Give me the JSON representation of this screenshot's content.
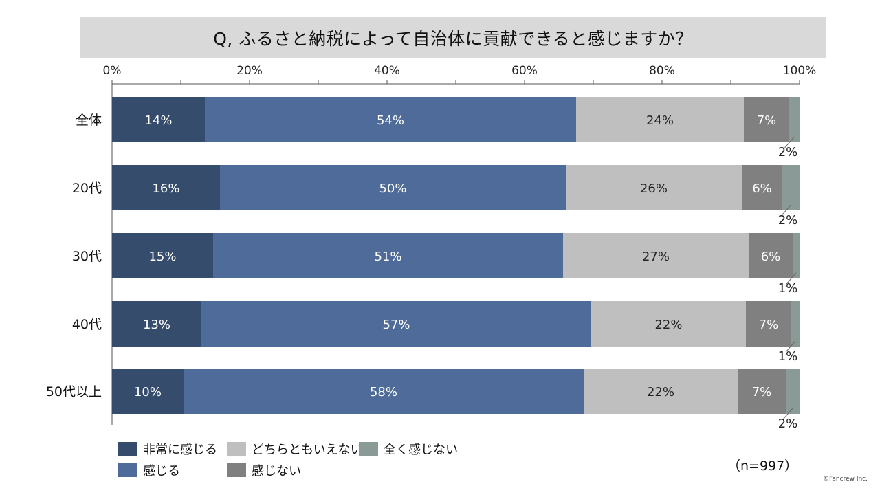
{
  "page": {
    "title": "Q, ふるさと納税によって自治体に貢献できると感じますか？",
    "sample_size": "（n=997）",
    "copyright": "©Fancrew Inc."
  },
  "colors": {
    "very_feel": "#364c6d",
    "feel": "#4e6b99",
    "neutral": "#bfbfbf",
    "not_feel": "#808080",
    "not_at_all": "#8a9a96"
  },
  "chart_data": {
    "type": "bar",
    "orientation": "horizontal",
    "stacked": true,
    "title": "Q, ふるさと納税によって自治体に貢献できると感じますか？",
    "categories": [
      "全体",
      "20代",
      "30代",
      "40代",
      "50代以上"
    ],
    "xlim": [
      0,
      100
    ],
    "x_ticks": [
      "0%",
      "20%",
      "40%",
      "60%",
      "80%",
      "100%"
    ],
    "legend_position": "bottom",
    "series": [
      {
        "name": "非常に感じる",
        "color": "#364c6d",
        "values": [
          13.5,
          15.7,
          14.7,
          13.0,
          10.4
        ],
        "labels": [
          "14%",
          "16%",
          "15%",
          "13%",
          "10%"
        ]
      },
      {
        "name": "感じる",
        "color": "#4e6b99",
        "values": [
          54.0,
          50.3,
          50.9,
          56.7,
          58.2
        ],
        "labels": [
          "54%",
          "50%",
          "51%",
          "57%",
          "58%"
        ]
      },
      {
        "name": "どちらともいえない",
        "color": "#bfbfbf",
        "values": [
          24.4,
          25.6,
          27.0,
          22.5,
          22.4
        ],
        "labels": [
          "24%",
          "26%",
          "27%",
          "22%",
          "22%"
        ]
      },
      {
        "name": "感じない",
        "color": "#808080",
        "values": [
          6.6,
          5.9,
          6.4,
          6.6,
          7.0
        ],
        "labels": [
          "7%",
          "6%",
          "6%",
          "7%",
          "7%"
        ]
      },
      {
        "name": "全く感じない",
        "color": "#8a9a96",
        "values": [
          1.5,
          2.5,
          1.0,
          1.2,
          2.0
        ],
        "labels": [
          "2%",
          "2%",
          "1%",
          "1%",
          "2%"
        ]
      }
    ]
  }
}
